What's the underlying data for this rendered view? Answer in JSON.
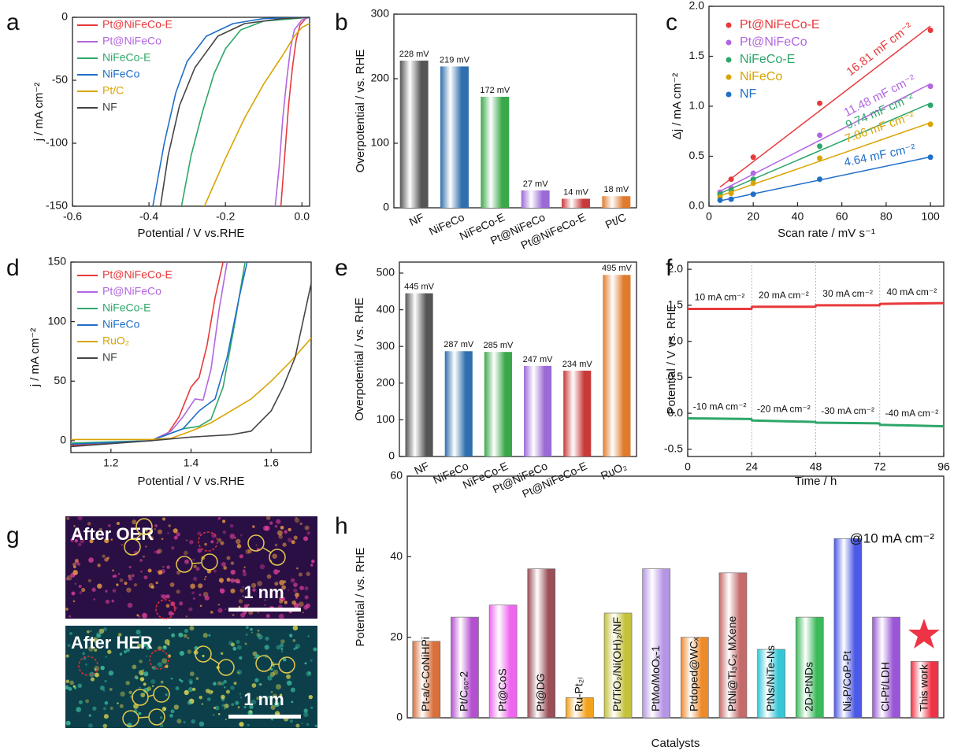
{
  "chart_data": [
    {
      "type": "line",
      "panel_label": "a",
      "xlabel": "Potential / V vs.RHE",
      "ylabel": "j / mA cm⁻²",
      "xlim": [
        -0.6,
        0.02
      ],
      "ylim": [
        -150,
        0
      ],
      "xticks": [
        -0.6,
        -0.4,
        -0.2,
        {
          "value": 0,
          "label": "0.0"
        }
      ],
      "yticks": [
        0,
        -50,
        -100,
        -150
      ],
      "series": [
        {
          "name": "Pt@NiFeCo-E",
          "color": "#e8393b",
          "x": [
            -0.055,
            -0.045,
            -0.035,
            -0.025,
            -0.015,
            -0.005,
            0.01,
            0.02
          ],
          "values": [
            -150,
            -110,
            -70,
            -40,
            -18,
            -6,
            -1,
            0
          ]
        },
        {
          "name": "Pt@NiFeCo",
          "color": "#b266e0",
          "x": [
            -0.07,
            -0.06,
            -0.05,
            -0.04,
            -0.03,
            -0.02,
            0,
            0.02
          ],
          "values": [
            -150,
            -120,
            -80,
            -50,
            -25,
            -10,
            -2,
            0
          ]
        },
        {
          "name": "NiFeCo-E",
          "color": "#2ea66a",
          "x": [
            -0.315,
            -0.29,
            -0.26,
            -0.23,
            -0.2,
            -0.16,
            -0.1,
            0.02
          ],
          "values": [
            -150,
            -110,
            -75,
            -45,
            -25,
            -10,
            -3,
            0
          ]
        },
        {
          "name": "NiFeCo",
          "color": "#1f6fc8",
          "x": [
            -0.39,
            -0.36,
            -0.33,
            -0.3,
            -0.25,
            -0.18,
            -0.1,
            0.02
          ],
          "values": [
            -150,
            -100,
            -60,
            -35,
            -15,
            -5,
            -1,
            0
          ]
        },
        {
          "name": "Pt/C",
          "color": "#d9a400",
          "x": [
            -0.255,
            -0.2,
            -0.15,
            -0.1,
            -0.05,
            -0.02,
            0,
            0.02
          ],
          "values": [
            -150,
            -112,
            -80,
            -53,
            -30,
            -15,
            -8,
            -5
          ]
        },
        {
          "name": "NF",
          "color": "#444444",
          "x": [
            -0.37,
            -0.35,
            -0.32,
            -0.28,
            -0.22,
            -0.15,
            -0.05,
            0.02
          ],
          "values": [
            -150,
            -110,
            -70,
            -40,
            -15,
            -5,
            -1,
            0
          ]
        }
      ]
    },
    {
      "type": "bar",
      "panel_label": "b",
      "ylabel": "Overpotential / vs. RHE",
      "ylim": [
        0,
        300
      ],
      "yticks": [
        0,
        100,
        200,
        300
      ],
      "categories": [
        "NF",
        "NiFeCo",
        "NiFeCo-E",
        "Pt@NiFeCo",
        "Pt@NiFeCo-E",
        "Pt/C"
      ],
      "values": [
        228,
        219,
        172,
        27,
        14,
        18
      ],
      "value_labels": [
        "228 mV",
        "219 mV",
        "172 mV",
        "27 mV",
        "14 mV",
        "18 mV"
      ],
      "colors": [
        "#555555",
        "#2f6fae",
        "#3aa84a",
        "#9b6ad6",
        "#c83a3a",
        "#e07a2c"
      ]
    },
    {
      "type": "scatter",
      "panel_label": "c",
      "xlabel": "Scan rate / mV s⁻¹",
      "ylabel": "Δj / mA cm⁻²",
      "xlim": [
        0,
        106
      ],
      "ylim": [
        0,
        2
      ],
      "xticks": [
        0,
        20,
        40,
        60,
        80,
        100
      ],
      "yticks": [
        {
          "value": 0,
          "label": "0.0"
        },
        0.5,
        {
          "value": 1,
          "label": "1.0"
        },
        1.5,
        {
          "value": 2,
          "label": "2.0"
        }
      ],
      "x": [
        5,
        10,
        20,
        50,
        100
      ],
      "series": [
        {
          "name": "Pt@NiFeCo-E",
          "color": "#e8393b",
          "values": [
            0.12,
            0.27,
            0.49,
            1.03,
            1.76
          ],
          "label": "16.81 mF cm⁻²"
        },
        {
          "name": "Pt@NiFeCo",
          "color": "#b266e0",
          "values": [
            0.14,
            0.18,
            0.33,
            0.71,
            1.2
          ],
          "label": "11.48 mF cm⁻²"
        },
        {
          "name": "NiFeCo-E",
          "color": "#2ea66a",
          "values": [
            0.12,
            0.16,
            0.27,
            0.6,
            1.01
          ],
          "label": "9.74 mF cm⁻²"
        },
        {
          "name": "NiFeCo",
          "color": "#d9a400",
          "values": [
            0.09,
            0.13,
            0.23,
            0.48,
            0.82
          ],
          "label": "7.86 mF cm⁻²"
        },
        {
          "name": "NF",
          "color": "#1f6fc8",
          "values": [
            0.06,
            0.07,
            0.12,
            0.27,
            0.49
          ],
          "label": "4.64 mF cm⁻²"
        }
      ]
    },
    {
      "type": "line",
      "panel_label": "d",
      "xlabel": "Potential / V vs.RHE",
      "ylabel": "j / mA cm⁻²",
      "xlim": [
        1.1,
        1.7
      ],
      "ylim": [
        -10,
        150
      ],
      "xticks": [
        1.2,
        1.4,
        1.6
      ],
      "yticks": [
        0,
        50,
        100,
        150
      ],
      "series": [
        {
          "name": "Pt@NiFeCo-E",
          "color": "#e8393b",
          "x": [
            1.1,
            1.3,
            1.34,
            1.37,
            1.4,
            1.42,
            1.44,
            1.46,
            1.48
          ],
          "values": [
            -4,
            0,
            5,
            20,
            45,
            53,
            80,
            120,
            150
          ]
        },
        {
          "name": "Pt@NiFeCo",
          "color": "#b266e0",
          "x": [
            1.1,
            1.3,
            1.35,
            1.38,
            1.41,
            1.43,
            1.45,
            1.47,
            1.49
          ],
          "values": [
            -3,
            0,
            8,
            20,
            35,
            34,
            60,
            110,
            150
          ]
        },
        {
          "name": "NiFeCo-E",
          "color": "#2ea66a",
          "x": [
            1.1,
            1.3,
            1.38,
            1.42,
            1.45,
            1.48,
            1.51,
            1.535
          ],
          "values": [
            -2,
            0,
            10,
            12,
            18,
            45,
            100,
            150
          ]
        },
        {
          "name": "NiFeCo",
          "color": "#1f6fc8",
          "x": [
            1.1,
            1.3,
            1.38,
            1.42,
            1.44,
            1.46,
            1.49,
            1.52,
            1.54
          ],
          "values": [
            -3,
            0,
            10,
            25,
            30,
            35,
            70,
            120,
            150
          ]
        },
        {
          "name": "RuO₂",
          "color": "#d9a400",
          "x": [
            1.1,
            1.3,
            1.35,
            1.4,
            1.45,
            1.5,
            1.55,
            1.6,
            1.65,
            1.7
          ],
          "values": [
            1,
            1,
            2,
            8,
            15,
            25,
            35,
            50,
            67,
            86
          ]
        },
        {
          "name": "NF",
          "color": "#444444",
          "x": [
            1.1,
            1.3,
            1.4,
            1.5,
            1.55,
            1.6,
            1.63,
            1.66,
            1.7
          ],
          "values": [
            -5,
            0,
            3,
            5,
            8,
            25,
            45,
            70,
            132
          ]
        }
      ]
    },
    {
      "type": "bar",
      "panel_label": "e",
      "ylabel": "Overpotential / vs. RHE",
      "ylim": [
        0,
        530
      ],
      "yticks": [
        0,
        100,
        200,
        300,
        400,
        500
      ],
      "categories": [
        "NF",
        "NiFeCo",
        "NiFeCo-E",
        "Pt@NiFeCo",
        "Pt@NiFeCo-E",
        "RuO₂"
      ],
      "values": [
        445,
        287,
        285,
        247,
        234,
        495
      ],
      "value_labels": [
        "445 mV",
        "287 mV",
        "285 mV",
        "247 mV",
        "234 mV",
        "495 mV"
      ],
      "colors": [
        "#555555",
        "#2f6fae",
        "#3aa84a",
        "#9b6ad6",
        "#c83a3a",
        "#e07a2c"
      ]
    },
    {
      "type": "line",
      "panel_label": "f",
      "xlabel": "Time / h",
      "ylabel": "Potential / V vs. RHE",
      "xlim": [
        0,
        96
      ],
      "ylim": [
        -0.6,
        2.1
      ],
      "xticks": [
        0,
        24,
        48,
        72,
        96
      ],
      "yticks": [
        -0.5,
        {
          "value": 0,
          "label": "0.0"
        },
        0.5,
        {
          "value": 1,
          "label": "1.0"
        },
        1.5,
        {
          "value": 2,
          "label": "2.0"
        }
      ],
      "x": [
        0,
        23.9,
        24.1,
        47.9,
        48.1,
        71.9,
        72.1,
        96
      ],
      "series": [
        {
          "color": "#e8393b",
          "values": [
            1.45,
            1.45,
            1.48,
            1.48,
            1.5,
            1.5,
            1.52,
            1.53
          ],
          "annotations": [
            "10 mA cm⁻²",
            "20 mA cm⁻²",
            "30 mA cm⁻²",
            "40 mA cm⁻²"
          ]
        },
        {
          "color": "#2ea66a",
          "values": [
            -0.07,
            -0.08,
            -0.1,
            -0.12,
            -0.13,
            -0.14,
            -0.16,
            -0.18
          ],
          "annotations": [
            "-10 mA cm⁻²",
            "-20 mA cm⁻²",
            "-30 mA cm⁻²",
            "-40 mA cm⁻²"
          ]
        }
      ]
    },
    {
      "type": "bar",
      "panel_label": "h",
      "xlabel": "Catalysts",
      "ylabel": "Potential / vs. RHE",
      "annotation": "@10 mA cm⁻²",
      "ylim": [
        0,
        60
      ],
      "yticks": [
        0,
        20,
        40,
        60
      ],
      "categories": [
        "Pt-a/c-CoNiHPi",
        "Pt/C₆₀-2",
        "Pt@CoS",
        "Pt@DG",
        "Ru-Pt₂ₗ",
        "Pt/TiO₂/Ni(OH)₂/NF",
        "PtMo/MoOₓ-1",
        "Ptdoped@WCₓ",
        "PtNi@Ti₃C₂ MXene",
        "PtNs/NiTe-Ns",
        "2D-PtNDs",
        "Ni₂P/CoP-Pt",
        "Cl-Pt/LDH",
        "This work"
      ],
      "values": [
        19,
        25,
        28,
        37,
        5,
        26,
        37,
        20,
        36,
        17,
        25,
        44.5,
        25,
        14
      ],
      "colors": [
        "#d9703a",
        "#b34fd0",
        "#ee66ee",
        "#9a4e58",
        "#f2a21e",
        "#c3c23a",
        "#b795e6",
        "#ef8a2a",
        "#c46a6a",
        "#36c7d6",
        "#3cb95a",
        "#4b59e6",
        "#9a56d6",
        "#ee3344"
      ]
    }
  ],
  "image_panel": {
    "panel_label": "g",
    "top_label": "After OER",
    "top_scale": "1 nm",
    "bottom_label": "After HER",
    "bottom_scale": "1 nm"
  }
}
